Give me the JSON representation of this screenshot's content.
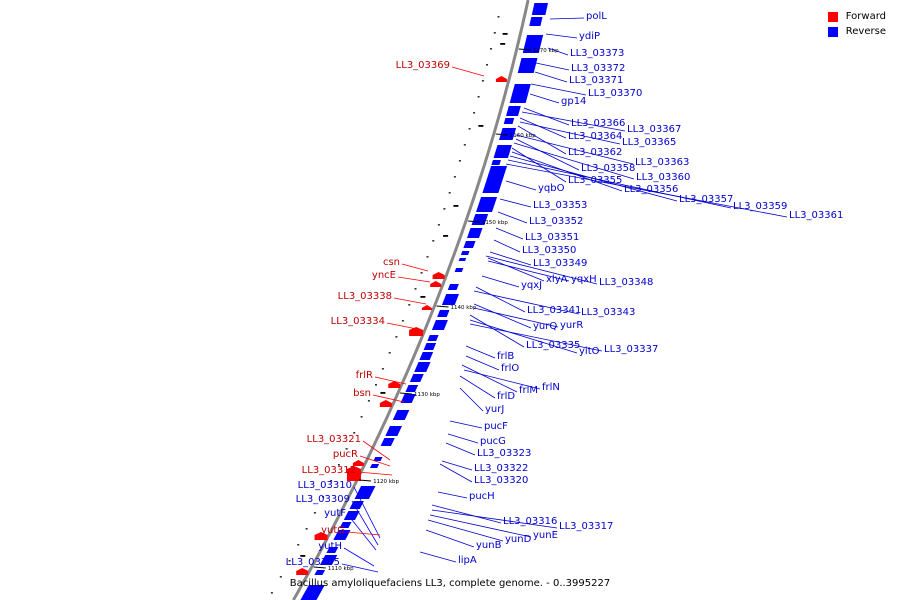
{
  "legend": {
    "forward": "Forward",
    "reverse": "Reverse"
  },
  "colors": {
    "forward": "#ff0000",
    "reverse": "#0000ff",
    "forward_label": "#c00000",
    "reverse_label": "#0000cc",
    "backbone": "#888888"
  },
  "caption": "Bacillus amyloliquefaciens LL3, complete genome. - 0..3995227",
  "ticks": [
    "1170 kbp",
    "1160 kbp",
    "1150 kbp",
    "1140 kbp",
    "1130 kbp",
    "1120 kbp",
    "1110 kbp"
  ],
  "reverse_labels": [
    "polL",
    "ydiP",
    "LL3_03373",
    "LL3_03372",
    "LL3_03371",
    "LL3_03370",
    "gp14",
    "LL3_03366",
    "LL3_03367",
    "LL3_03364",
    "LL3_03365",
    "LL3_03362",
    "LL3_03363",
    "LL3_03358",
    "LL3_03360",
    "LL3_03355",
    "LL3_03356",
    "yqbO",
    "LL3_03357",
    "LL3_03359",
    "LL3_03361",
    "LL3_03353",
    "LL3_03352",
    "LL3_03351",
    "LL3_03350",
    "LL3_03349",
    "xlyA",
    "yqxH",
    "LL3_03348",
    "yqxJ",
    "LL3_03341",
    "LL3_03343",
    "yurQ",
    "yurR",
    "LL3_03335",
    "yitO",
    "LL3_03337",
    "frlB",
    "frlO",
    "frlM",
    "frlN",
    "frlD",
    "yurJ",
    "pucF",
    "pucG",
    "LL3_03323",
    "LL3_03322",
    "LL3_03320",
    "pucH",
    "LL3_03316",
    "LL3_03317",
    "yunE",
    "yunD",
    "yunB",
    "lipA"
  ],
  "forward_labels": [
    "LL3_03369",
    "csn",
    "yncE",
    "LL3_03338",
    "LL3_03334",
    "frlR",
    "bsn",
    "LL3_03321",
    "pucR",
    "LL3_03312",
    "LL3_03310",
    "LL3_03309",
    "yutF",
    "yutG",
    "yutH",
    "LL3_03305"
  ],
  "forward_label_colors": [
    "red",
    "red",
    "red",
    "red",
    "red",
    "red",
    "red",
    "red",
    "red",
    "red",
    "blue",
    "blue",
    "blue",
    "red",
    "blue",
    "blue"
  ]
}
